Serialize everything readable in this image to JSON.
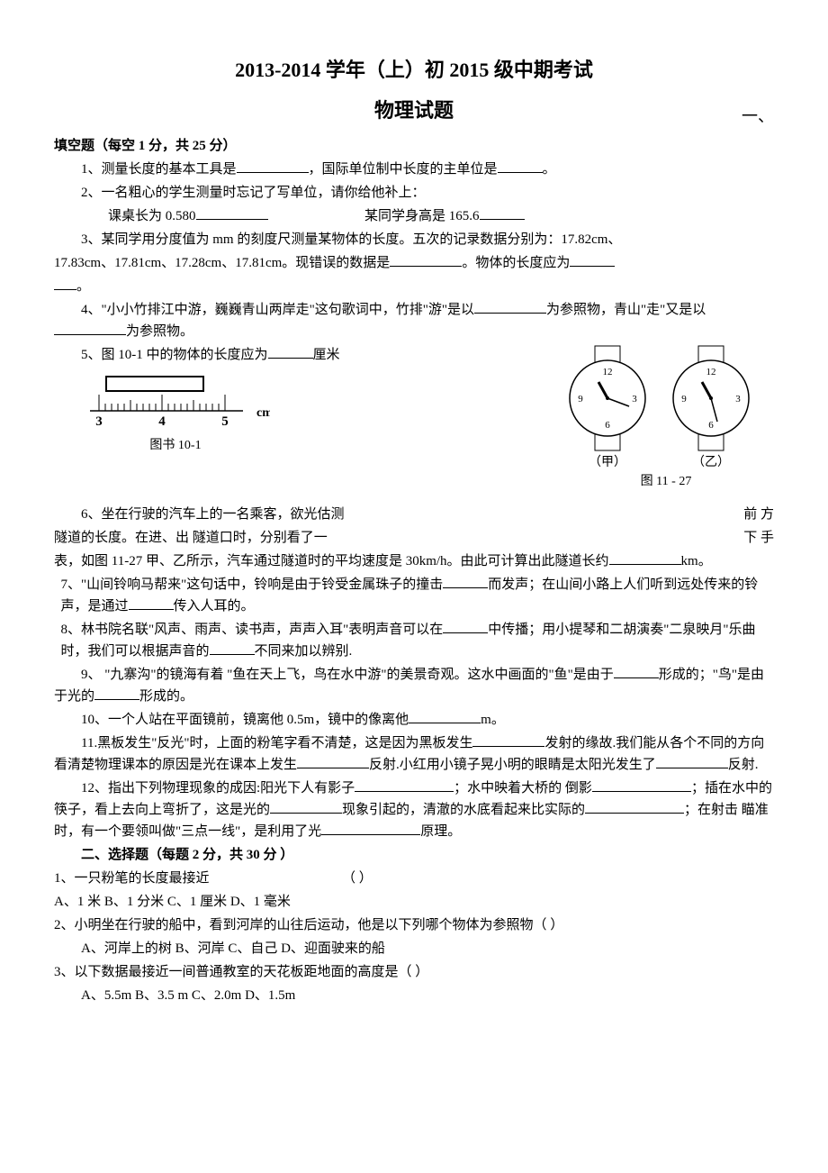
{
  "title_line1": "2013-2014 学年（上）初 2015 级中期考试",
  "title_line2": "物理试题",
  "section1_right": "一、",
  "section1_head": "填空题（每空 1 分，共 25 分）",
  "q1": "1、测量长度的基本工具是",
  "q1b": "，国际单位制中长度的主单位是",
  "q1c": "。",
  "q2": "2、一名粗心的学生测量时忘记了写单位，请你给他补上：",
  "q2a": "课桌长为 0.580",
  "q2b": "某同学身高是 165.6",
  "q3a": "3、某同学用分度值为 mm 的刻度尺测量某物体的长度。五次的记录数据分别为：17.82cm、",
  "q3b": "17.83cm、17.81cm、17.28cm、17.81cm。现错误的数据是",
  "q3c": "。物体的长度应为",
  "q3d": "。",
  "q4a": "4、\"小小竹排江中游，巍巍青山两岸走\"这句歌词中，竹排\"游\"是以",
  "q4b": "为参照物，青山\"走\"又是以",
  "q4c": "为参照物。",
  "q5": "5、图 10-1 中的物体的长度应为",
  "q5b": "厘米",
  "ruler": {
    "marks": [
      "3",
      "4",
      "5"
    ],
    "unit": "cm",
    "caption": "图书 10-1",
    "stroke": "#000000",
    "bg": "#ffffff"
  },
  "watches": {
    "left_label": "（甲）",
    "right_label": "（乙）",
    "caption": "图 11 - 27",
    "numbers": [
      "12",
      "3",
      "6",
      "9"
    ],
    "left_hour_angle": -30,
    "left_min_angle": 70,
    "right_hour_angle": -30,
    "right_min_angle": 165,
    "stroke": "#000000"
  },
  "q6a": "6、坐在行驶的汽车上的一名乘客，欲光估测",
  "q6a_right": "前 方",
  "q6b": "隧道的长度。在进、出 隧道口时，分别看了一",
  "q6b_right": "下 手",
  "q6c": "表，如图 11-27 甲、乙所示，汽车通过隧道时的平均速度是 30km/h。由此可计算出此隧道长约",
  "q6d": "km。",
  "q7a": "7、\"山间铃响马帮来\"这句话中，铃响是由于铃受金属珠子的撞击",
  "q7b": "而发声；在山间小路上人们听到远处传来的铃声，是通过",
  "q7c": "传入人耳的。",
  "q8a": "8、林书院名联\"风声、雨声、读书声，声声入耳\"表明声音可以在",
  "q8b": "中传播；用小提琴和二胡演奏\"二泉映月\"乐曲时，我们可以根据声音的",
  "q8c": "不同来加以辨别.",
  "q9a": "9、 \"九寨沟\"的镜海有着 \"鱼在天上飞，鸟在水中游\"的美景奇观。这水中画面的\"鱼\"是由于",
  "q9b": "形成的；\"鸟\"是由于光的",
  "q9c": "形成的。",
  "q10a": "10、一个人站在平面镜前，镜离他 0.5m，镜中的像离他",
  "q10b": "m。",
  "q11a": "11.黑板发生\"反光\"时，上面的粉笔字看不清楚，这是因为黑板发生",
  "q11b": "发射的缘故.我们能从各个不同的方向看清楚物理课本的原因是光在课本上发生",
  "q11c": "反射.小红用小镜子晃小明的眼睛是太阳光发生了",
  "q11d": "反射.",
  "q12a": "12、指出下列物理现象的成因:阳光下人有影子",
  "q12b": "；水中映着大桥的 倒影",
  "q12c": "；插在水中的筷子，看上去向上弯折了，这是光的",
  "q12d": "现象引起的，清澈的水底看起来比实际的",
  "q12e": "；在射击 瞄准时，有一个要领叫做\"三点一线\"，是利用了光",
  "q12f": "原理。",
  "section2_head": "二、选择题（每题 2 分，共 30 分 ）",
  "mc1_stem": "1、一只粉笔的长度最接近",
  "mc1_paren": "（   ）",
  "mc1_opts": "A、1 米    B、1 分米    C、1 厘米    D、1 毫米",
  "mc2_stem": "2、小明坐在行驶的船中，看到河岸的山往后运动，他是以下列哪个物体为参照物（   ）",
  "mc2_opts": "A、河岸上的树    B、河岸    C、自己    D、迎面驶来的船",
  "mc3_stem": "3、以下数据最接近一间普通教室的天花板距地面的高度是（   ）",
  "mc3_opts": "A、5.5m     B、3.5 m   C、2.0m    D、1.5m"
}
